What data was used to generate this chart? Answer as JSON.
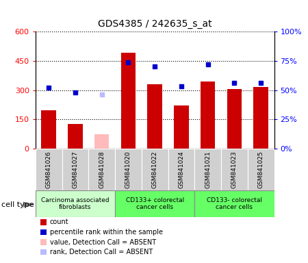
{
  "title": "GDS4385 / 242635_s_at",
  "samples": [
    "GSM841026",
    "GSM841027",
    "GSM841028",
    "GSM841020",
    "GSM841022",
    "GSM841024",
    "GSM841021",
    "GSM841023",
    "GSM841025"
  ],
  "bar_values": [
    195,
    125,
    null,
    490,
    330,
    220,
    345,
    305,
    315
  ],
  "bar_absent_values": [
    null,
    null,
    72,
    null,
    null,
    null,
    null,
    null,
    null
  ],
  "percentile_values": [
    52,
    48,
    null,
    74,
    70,
    53,
    72,
    56,
    56
  ],
  "percentile_absent_values": [
    null,
    null,
    46,
    null,
    null,
    null,
    null,
    null,
    null
  ],
  "ylim_left": [
    0,
    600
  ],
  "ylim_right": [
    0,
    100
  ],
  "yticks_left": [
    0,
    150,
    300,
    450,
    600
  ],
  "ytick_labels_left": [
    "0",
    "150",
    "300",
    "450",
    "600"
  ],
  "yticks_right": [
    0,
    25,
    50,
    75,
    100
  ],
  "ytick_labels_right": [
    "0%",
    "25%",
    "50%",
    "75%",
    "100%"
  ],
  "cell_groups": [
    {
      "label": "Carcinoma associated\nfibroblasts",
      "start": 0,
      "end": 3,
      "color": "#ccffcc"
    },
    {
      "label": "CD133+ colorectal\ncancer cells",
      "start": 3,
      "end": 6,
      "color": "#66ff66"
    },
    {
      "label": "CD133- colorectal\ncancer cells",
      "start": 6,
      "end": 9,
      "color": "#66ff66"
    }
  ],
  "legend_items": [
    {
      "label": "count",
      "color": "#cc0000"
    },
    {
      "label": "percentile rank within the sample",
      "color": "#0000cc"
    },
    {
      "label": "value, Detection Call = ABSENT",
      "color": "#ffbbbb"
    },
    {
      "label": "rank, Detection Call = ABSENT",
      "color": "#bbbbff"
    }
  ],
  "cell_type_label": "cell type",
  "bar_color_present": "#cc0000",
  "bar_color_absent": "#ffbbbb",
  "dot_color_present": "#0000cc",
  "dot_color_absent": "#bbbbff",
  "background_gray": "#d0d0d0",
  "group_border_color": "#888888"
}
